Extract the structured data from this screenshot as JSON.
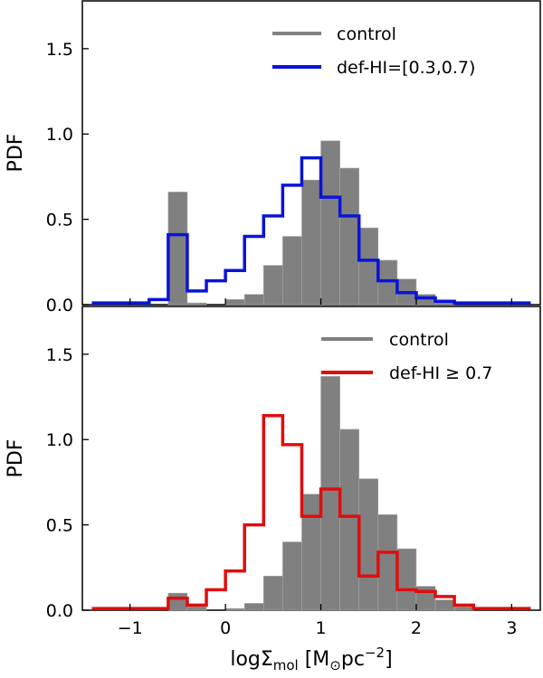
{
  "chart_data": [
    {
      "type": "histogram",
      "panel": "top",
      "ylabel": "PDF",
      "xlim": [
        -1.5,
        3.3
      ],
      "ylim": [
        0,
        1.78
      ],
      "yticks": [
        0.0,
        0.5,
        1.0,
        1.5
      ],
      "ytick_labels": [
        "0.0",
        "0.5",
        "1.0",
        "1.5"
      ],
      "bin_edges": [
        -1.4,
        -1.2,
        -1.0,
        -0.8,
        -0.6,
        -0.4,
        -0.2,
        0.0,
        0.2,
        0.4,
        0.6,
        0.8,
        1.0,
        1.2,
        1.4,
        1.6,
        1.8,
        2.0,
        2.2,
        2.4,
        2.6,
        2.8,
        3.0,
        3.2
      ],
      "series": [
        {
          "name": "control",
          "style": "filled-bar",
          "color": "#808080",
          "values": [
            0,
            0,
            0,
            0,
            0.66,
            0.01,
            0,
            0.03,
            0.06,
            0.23,
            0.4,
            0.73,
            0.96,
            0.8,
            0.45,
            0.26,
            0.15,
            0.06,
            0.02,
            0,
            0,
            0,
            0
          ]
        },
        {
          "name": "def-HI=[0.3,0.7)",
          "style": "step",
          "color": "#0a14d8",
          "values": [
            0.01,
            0.01,
            0.01,
            0.03,
            0.41,
            0.08,
            0.14,
            0.2,
            0.4,
            0.52,
            0.7,
            0.86,
            0.63,
            0.52,
            0.26,
            0.14,
            0.07,
            0.04,
            0.02,
            0.01,
            0.01,
            0.01,
            0.01
          ]
        }
      ]
    },
    {
      "type": "histogram",
      "panel": "bottom",
      "xlabel": "logΣ",
      "xlabel_sub": "mol",
      "xlabel_unit_open": " [M",
      "xlabel_sun": "⊙",
      "xlabel_unit_mid": "pc",
      "xlabel_exp": "−2",
      "xlabel_unit_close": "]",
      "ylabel": "PDF",
      "xlim": [
        -1.5,
        3.3
      ],
      "ylim": [
        0,
        1.78
      ],
      "xticks": [
        -1,
        0,
        1,
        2,
        3
      ],
      "xtick_labels": [
        "−1",
        "0",
        "1",
        "2",
        "3"
      ],
      "yticks": [
        0.0,
        0.5,
        1.0,
        1.5
      ],
      "ytick_labels": [
        "0.0",
        "0.5",
        "1.0",
        "1.5"
      ],
      "bin_edges": [
        -1.4,
        -1.2,
        -1.0,
        -0.8,
        -0.6,
        -0.4,
        -0.2,
        0.0,
        0.2,
        0.4,
        0.6,
        0.8,
        1.0,
        1.2,
        1.4,
        1.6,
        1.8,
        2.0,
        2.2,
        2.4,
        2.6,
        2.8,
        3.0,
        3.2
      ],
      "series": [
        {
          "name": "control",
          "style": "filled-bar",
          "color": "#808080",
          "values": [
            0,
            0,
            0,
            0,
            0.1,
            0.02,
            0,
            0.01,
            0.04,
            0.2,
            0.4,
            0.68,
            1.37,
            1.06,
            0.77,
            0.56,
            0.36,
            0.14,
            0.06,
            0.02,
            0,
            0,
            0
          ]
        },
        {
          "name": "def-HI ≥ 0.7",
          "style": "step",
          "color": "#e00d0d",
          "values": [
            0.01,
            0.01,
            0.01,
            0.01,
            0.07,
            0.03,
            0.12,
            0.23,
            0.5,
            1.14,
            0.97,
            0.55,
            0.71,
            0.55,
            0.2,
            0.34,
            0.12,
            0.11,
            0.08,
            0.03,
            0.01,
            0.01,
            0.01
          ]
        }
      ]
    }
  ]
}
